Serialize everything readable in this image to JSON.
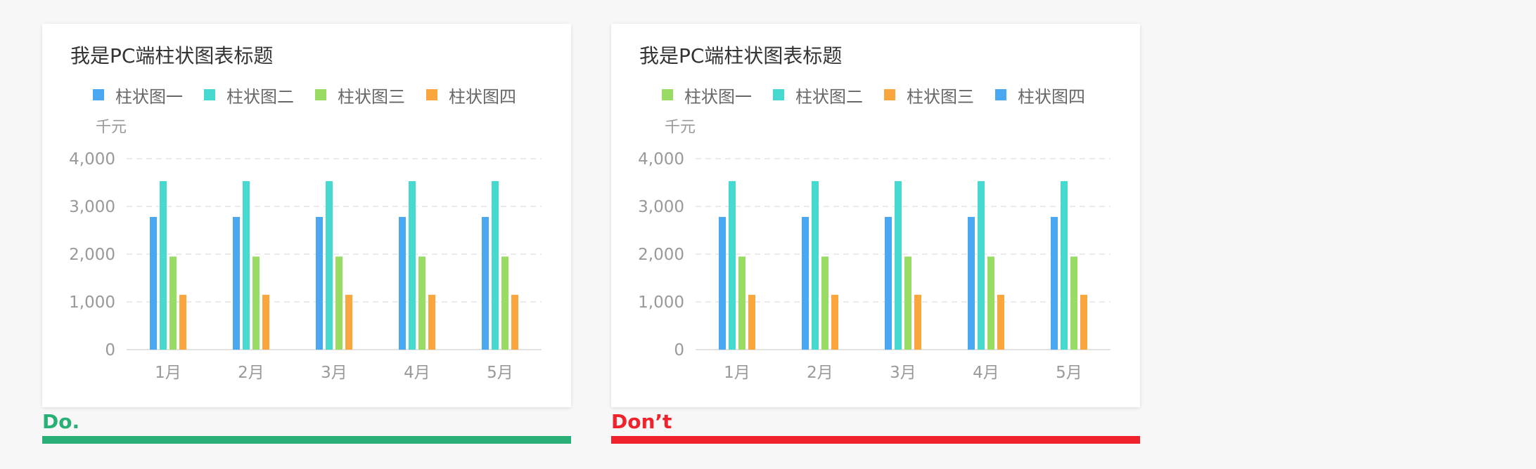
{
  "colors": {
    "blue": "#4aa8f2",
    "teal": "#46d9cf",
    "green": "#98dc63",
    "orange": "#faa63c",
    "do_green": "#2aaf77",
    "dont_red": "#f0232c"
  },
  "panels": [
    {
      "verdict": "Do.",
      "verdict_color": "#2aaf77",
      "legend": [
        {
          "label": "柱状图一",
          "color": "#4aa8f2"
        },
        {
          "label": "柱状图二",
          "color": "#46d9cf"
        },
        {
          "label": "柱状图三",
          "color": "#98dc63"
        },
        {
          "label": "柱状图四",
          "color": "#faa63c"
        }
      ]
    },
    {
      "verdict": "Don’t",
      "verdict_color": "#f0232c",
      "legend": [
        {
          "label": "柱状图一",
          "color": "#98dc63"
        },
        {
          "label": "柱状图二",
          "color": "#46d9cf"
        },
        {
          "label": "柱状图三",
          "color": "#faa63c"
        },
        {
          "label": "柱状图四",
          "color": "#4aa8f2"
        }
      ]
    }
  ],
  "chart_data": [
    {
      "type": "bar",
      "title": "我是PC端柱状图表标题",
      "unit_label": "千元",
      "categories": [
        "1月",
        "2月",
        "3月",
        "4月",
        "5月"
      ],
      "y_ticks": [
        "0",
        "1,000",
        "2,000",
        "3,000",
        "4,000"
      ],
      "ylim": [
        0,
        4000
      ],
      "grid": true,
      "legend_position": "top",
      "series": [
        {
          "name": "柱状图一",
          "color": "#4aa8f2",
          "values": [
            2780,
            2780,
            2780,
            2780,
            2780
          ]
        },
        {
          "name": "柱状图二",
          "color": "#46d9cf",
          "values": [
            3530,
            3530,
            3530,
            3530,
            3530
          ]
        },
        {
          "name": "柱状图三",
          "color": "#98dc63",
          "values": [
            1950,
            1950,
            1950,
            1950,
            1950
          ]
        },
        {
          "name": "柱状图四",
          "color": "#faa63c",
          "values": [
            1150,
            1150,
            1150,
            1150,
            1150
          ]
        }
      ]
    },
    {
      "type": "bar",
      "title": "我是PC端柱状图表标题",
      "unit_label": "千元",
      "categories": [
        "1月",
        "2月",
        "3月",
        "4月",
        "5月"
      ],
      "y_ticks": [
        "0",
        "1,000",
        "2,000",
        "3,000",
        "4,000"
      ],
      "ylim": [
        0,
        4000
      ],
      "grid": true,
      "legend_position": "top",
      "series": [
        {
          "name": "柱状图一",
          "color": "#4aa8f2",
          "values": [
            2780,
            2780,
            2780,
            2780,
            2780
          ]
        },
        {
          "name": "柱状图二",
          "color": "#46d9cf",
          "values": [
            3530,
            3530,
            3530,
            3530,
            3530
          ]
        },
        {
          "name": "柱状图三",
          "color": "#98dc63",
          "values": [
            1950,
            1950,
            1950,
            1950,
            1950
          ]
        },
        {
          "name": "柱状图四",
          "color": "#faa63c",
          "values": [
            1150,
            1150,
            1150,
            1150,
            1150
          ]
        }
      ]
    }
  ]
}
